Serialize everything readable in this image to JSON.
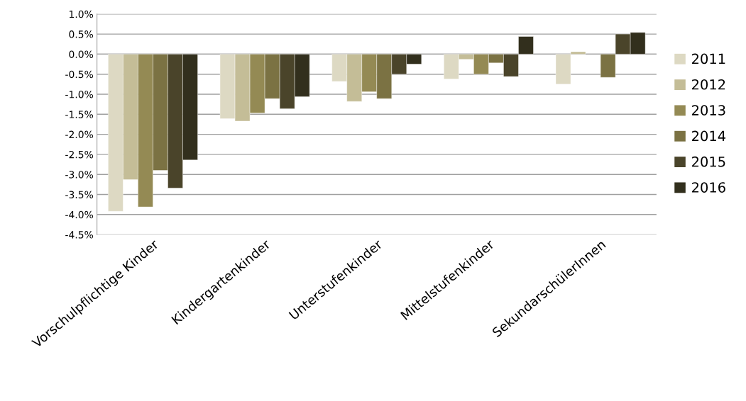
{
  "chart_data": {
    "type": "bar",
    "categories": [
      "Vorschulpflichtige Kinder",
      "Kindergartenkinder",
      "Unterstufenkinder",
      "Mittelstufenkinder",
      "SekundarschülerInnen"
    ],
    "series": [
      {
        "name": "2011",
        "color": "#ddd9c3",
        "values": [
          -3.92,
          -1.61,
          -0.68,
          -0.62,
          -0.75
        ]
      },
      {
        "name": "2012",
        "color": "#c4bd97",
        "values": [
          -3.13,
          -1.67,
          -1.18,
          -0.13,
          0.06
        ]
      },
      {
        "name": "2013",
        "color": "#948a54",
        "values": [
          -3.81,
          -1.47,
          -0.94,
          -0.5,
          null
        ]
      },
      {
        "name": "2014",
        "color": "#7b7243",
        "values": [
          -2.9,
          -1.11,
          -1.11,
          -0.22,
          -0.58
        ]
      },
      {
        "name": "2015",
        "color": "#4a442a",
        "values": [
          -3.34,
          -1.36,
          -0.5,
          -0.56,
          0.5
        ]
      },
      {
        "name": "2016",
        "color": "#322f1d",
        "values": [
          -2.64,
          -1.06,
          -0.25,
          0.44,
          0.54
        ]
      }
    ],
    "ylim": [
      -4.5,
      1.0
    ],
    "yticks": [
      {
        "value": -4.5,
        "label": "-4.5%"
      },
      {
        "value": -4.0,
        "label": "-4.0%"
      },
      {
        "value": -3.5,
        "label": "-3.5%"
      },
      {
        "value": -3.0,
        "label": "-3.0%"
      },
      {
        "value": -2.5,
        "label": "-2.5%"
      },
      {
        "value": -2.0,
        "label": "-2.0%"
      },
      {
        "value": -1.5,
        "label": "-1.5%"
      },
      {
        "value": -1.0,
        "label": "-1.0%"
      },
      {
        "value": -0.5,
        "label": "-0.5%"
      },
      {
        "value": 0.0,
        "label": "0.0%"
      },
      {
        "value": 0.5,
        "label": "0.5%"
      },
      {
        "value": 1.0,
        "label": "1.0%"
      }
    ],
    "grid": "y",
    "legend": "right"
  }
}
